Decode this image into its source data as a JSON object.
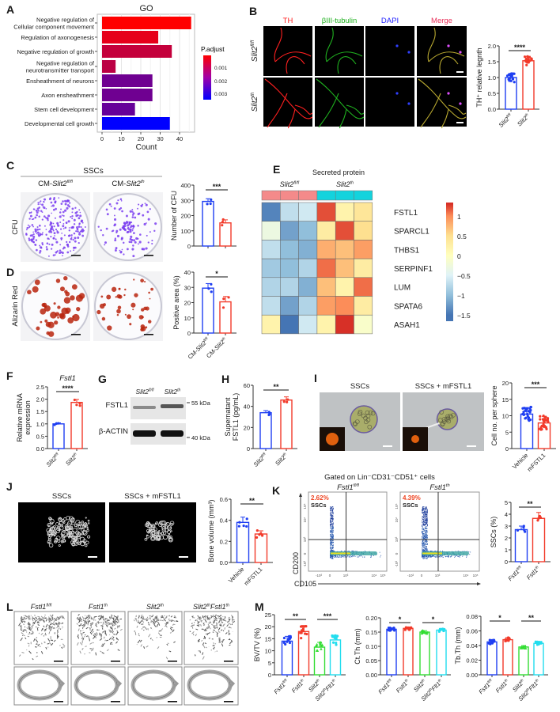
{
  "panel_labels": [
    "A",
    "B",
    "C",
    "D",
    "E",
    "F",
    "G",
    "H",
    "I",
    "J",
    "K",
    "L",
    "M"
  ],
  "genotypes": {
    "slit2_flfl": {
      "base": "Slit2",
      "sup": "fl/fl"
    },
    "slit2_th": {
      "base": "Slit2",
      "sup": "th"
    },
    "cm_slit2_flfl": {
      "pre": "CM-",
      "base": "Slit2",
      "sup": "fl/fl"
    },
    "cm_slit2_th": {
      "pre": "CM-",
      "base": "Slit2",
      "sup": "th"
    },
    "fstl1_flfl": {
      "base": "Fstl1",
      "sup": "fl/fl"
    },
    "fstl1_th": {
      "base": "Fstl1",
      "sup": "th"
    },
    "slit2th_fstl1th": {
      "base": "Slit2",
      "sup": "th",
      "base2": "Fstl1",
      "sup2": "th"
    },
    "slit2th_flt1th": {
      "base": "Slit2",
      "sup": "th",
      "base2": "Flt1",
      "sup2": "th"
    }
  },
  "B": {
    "channels": [
      "TH",
      "βIII-tubulin",
      "DAPI",
      "Merge"
    ],
    "channel_colors": [
      "#ff2020",
      "#1fb01f",
      "#2020ff",
      "#e8305a"
    ]
  },
  "C": {
    "header": "SSCs",
    "row_label": "CFU"
  },
  "D": {
    "row_label": "Alizarin Red"
  },
  "G": {
    "bands": [
      "FSTL1",
      "β-ACTIN"
    ],
    "markers": [
      "55 kDa",
      "40 kDa"
    ]
  },
  "I": {
    "titles": [
      "SSCs",
      "SSCs + mFSTL1"
    ]
  },
  "J": {
    "titles": [
      "SSCs",
      "SSCs + mFSTL1"
    ]
  },
  "K": {
    "gate_title": "Gated on Lin⁻CD31⁻CD51⁺ cells",
    "percents": [
      "2.62%",
      "4.39%"
    ],
    "gate_name": "SSCs",
    "y_axis": "CD200",
    "x_axis": "CD105",
    "y_ticks": [
      "10⁵",
      "10⁴",
      "10³",
      "0",
      "-10³"
    ],
    "x_ticks": [
      "-10³",
      "0",
      "10³",
      "10⁴",
      "10⁵"
    ]
  },
  "colors": {
    "blue": "#1f3ff2",
    "red": "#f23a2a",
    "green": "#33dd33",
    "cyan": "#22ddee"
  },
  "chart_data": [
    {
      "id": "A",
      "type": "bar",
      "orientation": "horizontal",
      "title": "GO",
      "xlabel": "Count",
      "categories": [
        [
          "Negative regulation of",
          "Cellular component movement"
        ],
        [
          "Regulation of axonogenesis"
        ],
        [
          "Negative regulation of growth"
        ],
        [
          "Negative regulation of",
          "neurotransmitter transport"
        ],
        [
          "Ensheathment of neurons"
        ],
        [
          "Axon ensheathment"
        ],
        [
          "Stem cell development"
        ],
        [
          "Developmental cell growth"
        ]
      ],
      "values": [
        46,
        29,
        36,
        7,
        26,
        26,
        17,
        35
      ],
      "padjust": [
        0.0005,
        0.0008,
        0.0012,
        0.0013,
        0.0022,
        0.0022,
        0.0023,
        0.0035
      ],
      "xticks": [
        "0",
        "10",
        "20",
        "30",
        "40"
      ],
      "xlim": [
        0,
        47
      ],
      "legend": {
        "title": "P.adjust",
        "ticks": [
          "0.001",
          "0.002",
          "0.003"
        ],
        "range": [
          0.0005,
          0.0035
        ],
        "low_color": "#ff0000",
        "high_color": "#0000ff"
      },
      "grid": true
    },
    {
      "id": "E",
      "type": "heatmap",
      "title": "Secreted protein",
      "groups": [
        {
          "genotype": "slit2_flfl",
          "color": "#f48a8a",
          "n": 3
        },
        {
          "genotype": "slit2_th",
          "color": "#13d3dd",
          "n": 3
        }
      ],
      "rows": [
        "FSTL1",
        "SPARCL1",
        "THBS1",
        "SERPINF1",
        "LUM",
        "SPATA6",
        "ASAH1"
      ],
      "values": [
        [
          -1.4,
          -0.7,
          -0.6,
          1.2,
          0.2,
          0.4
        ],
        [
          -0.3,
          -1.2,
          -1.0,
          0.3,
          1.2,
          0.5
        ],
        [
          -0.7,
          -1.0,
          -1.1,
          0.8,
          0.7,
          0.9
        ],
        [
          -0.9,
          -1.0,
          -0.8,
          1.1,
          0.7,
          0.3
        ],
        [
          -0.8,
          -0.8,
          -1.1,
          0.7,
          0.2,
          1.1
        ],
        [
          -0.7,
          -1.2,
          -0.8,
          0.9,
          1.0,
          0.3
        ],
        [
          0.2,
          -1.5,
          -0.6,
          0.2,
          1.3,
          -0.1
        ]
      ],
      "colorbar_ticks": [
        "1",
        "0.5",
        "0",
        "−0.5",
        "−1",
        "−1.5"
      ],
      "colorbar_values": [
        1,
        0.5,
        0,
        -0.5,
        -1,
        -1.5
      ]
    },
    {
      "id": "B",
      "type": "bar",
      "ylabel": "TH⁺ relative legnth",
      "ylim": [
        0,
        2
      ],
      "yticks": [
        "0.0",
        "0.5",
        "1.0",
        "1.5",
        "2.0"
      ],
      "values": [
        1.0,
        1.53
      ],
      "sd": [
        0.13,
        0.14
      ],
      "n": [
        20,
        20
      ],
      "colors": [
        "blue",
        "red"
      ],
      "xlabels": [
        "slit2_flfl",
        "slit2_th"
      ],
      "sig": [
        {
          "a": 0,
          "b": 1,
          "label": "****"
        }
      ]
    },
    {
      "id": "C",
      "type": "bar",
      "ylabel": "Number of CFU",
      "ylim": [
        0,
        400
      ],
      "yticks": [
        "0",
        "100",
        "200",
        "300",
        "400"
      ],
      "values": [
        293,
        152
      ],
      "sd": [
        18,
        20
      ],
      "n": [
        3,
        3
      ],
      "colors": [
        "blue",
        "red"
      ],
      "xlabels": [],
      "sig": [
        {
          "a": 0,
          "b": 1,
          "label": "***"
        }
      ]
    },
    {
      "id": "D",
      "type": "bar",
      "ylabel": "Positive area (%)",
      "ylim": [
        0,
        40
      ],
      "yticks": [
        "0",
        "10",
        "20",
        "30",
        "40"
      ],
      "values": [
        29.5,
        20.5
      ],
      "sd": [
        3,
        3.5
      ],
      "n": [
        3,
        3
      ],
      "colors": [
        "blue",
        "red"
      ],
      "xlabels": [
        "cm_slit2_flfl",
        "cm_slit2_th"
      ],
      "sig": [
        {
          "a": 0,
          "b": 1,
          "label": "*"
        }
      ]
    },
    {
      "id": "F",
      "type": "bar",
      "title": "Fstl1",
      "ylabel": [
        "Relative mRNA",
        "expression"
      ],
      "ylim": [
        0,
        2.5
      ],
      "yticks": [
        "0.0",
        "0.5",
        "1.0",
        "1.5",
        "2.0",
        "2.5"
      ],
      "values": [
        1.0,
        1.87
      ],
      "sd": [
        0.04,
        0.12
      ],
      "n": [
        4,
        4
      ],
      "colors": [
        "blue",
        "red"
      ],
      "xlabels": [
        "slit2_flfl",
        "slit2_th"
      ],
      "sig": [
        {
          "a": 0,
          "b": 1,
          "label": "****"
        }
      ]
    },
    {
      "id": "H",
      "type": "bar",
      "ylabel": [
        "Supernatant",
        "FSTL1 (pg/mL)"
      ],
      "ylim": [
        0,
        60
      ],
      "yticks": [
        "0",
        "20",
        "40",
        "60"
      ],
      "values": [
        34,
        46
      ],
      "sd": [
        2,
        3
      ],
      "n": [
        3,
        3
      ],
      "colors": [
        "blue",
        "red"
      ],
      "xlabels": [
        "slit2_flfl",
        "slit2_th"
      ],
      "sig": [
        {
          "a": 0,
          "b": 1,
          "label": "**"
        }
      ]
    },
    {
      "id": "I",
      "type": "bar",
      "ylabel": "Cell no. per sphere",
      "ylim": [
        0,
        20
      ],
      "yticks": [
        "0",
        "5",
        "10",
        "15",
        "20"
      ],
      "values": [
        10.5,
        7.8
      ],
      "sd": [
        2,
        2
      ],
      "n": [
        25,
        25
      ],
      "colors": [
        "blue",
        "red"
      ],
      "xlabels": [
        "Vehicle",
        "mFSTL1"
      ],
      "sig": [
        {
          "a": 0,
          "b": 1,
          "label": "***"
        }
      ]
    },
    {
      "id": "J",
      "type": "bar",
      "ylabel": "Bone volume (mm³)",
      "ylim": [
        0,
        0.6
      ],
      "yticks": [
        "0.0",
        "0.2",
        "0.4",
        "0.6"
      ],
      "values": [
        0.38,
        0.27
      ],
      "sd": [
        0.05,
        0.03
      ],
      "n": [
        5,
        5
      ],
      "colors": [
        "blue",
        "red"
      ],
      "xlabels": [
        "Vehicle",
        "mFSTL1"
      ],
      "sig": [
        {
          "a": 0,
          "b": 1,
          "label": "**"
        }
      ]
    },
    {
      "id": "K",
      "type": "bar",
      "ylabel": "SSCs (%)",
      "ylim": [
        0,
        5
      ],
      "yticks": [
        "0",
        "1",
        "2",
        "3",
        "4",
        "5"
      ],
      "values": [
        2.7,
        3.65
      ],
      "sd": [
        0.3,
        0.5
      ],
      "n": [
        5,
        5
      ],
      "colors": [
        "blue",
        "red"
      ],
      "xlabels": [
        "fstl1_flfl",
        "fstl1_th"
      ],
      "sig": [
        {
          "a": 0,
          "b": 1,
          "label": "**"
        }
      ]
    },
    {
      "id": "M1",
      "type": "bar",
      "ylabel": "BV/TV (%)",
      "ylim": [
        0,
        25
      ],
      "yticks": [
        "0",
        "5",
        "10",
        "15",
        "20",
        "25"
      ],
      "values": [
        14,
        18,
        11.5,
        14.5
      ],
      "sd": [
        2,
        2.5,
        2,
        2
      ],
      "n": [
        12,
        12,
        12,
        12
      ],
      "colors": [
        "blue",
        "red",
        "green",
        "cyan"
      ],
      "xlabels": [
        "fstl1_flfl",
        "fstl1_th",
        "slit2_th",
        "slit2th_flt1th"
      ],
      "sig": [
        {
          "a": 0,
          "b": 1,
          "label": "**"
        },
        {
          "a": 2,
          "b": 3,
          "label": "***"
        }
      ]
    },
    {
      "id": "M2",
      "type": "bar",
      "ylabel": "Ct.Th (mm)",
      "ylim": [
        0,
        0.2
      ],
      "yticks": [
        "0.00",
        "0.05",
        "0.10",
        "0.15",
        "0.20"
      ],
      "values": [
        0.16,
        0.163,
        0.15,
        0.157
      ],
      "sd": [
        0.005,
        0.005,
        0.005,
        0.005
      ],
      "n": [
        12,
        12,
        12,
        12
      ],
      "colors": [
        "blue",
        "red",
        "green",
        "cyan"
      ],
      "xlabels": [
        "fstl1_flfl",
        "fstl1_th",
        "slit2_th",
        "slit2th_flt1th"
      ],
      "sig": [
        {
          "a": 0,
          "b": 1,
          "label": "*"
        },
        {
          "a": 2,
          "b": 3,
          "label": "*"
        }
      ]
    },
    {
      "id": "M3",
      "type": "bar",
      "ylabel": "Tb.Th (mm)",
      "ylim": [
        0,
        0.08
      ],
      "yticks": [
        "0.00",
        "0.02",
        "0.04",
        "0.06",
        "0.08"
      ],
      "values": [
        0.045,
        0.048,
        0.038,
        0.043
      ],
      "sd": [
        0.003,
        0.003,
        0.002,
        0.002
      ],
      "n": [
        12,
        12,
        12,
        12
      ],
      "colors": [
        "blue",
        "red",
        "green",
        "cyan"
      ],
      "xlabels": [
        "fstl1_flfl",
        "fstl1_th",
        "slit2_th",
        "slit2th_flt1th"
      ],
      "sig": [
        {
          "a": 0,
          "b": 1,
          "label": "*"
        },
        {
          "a": 2,
          "b": 3,
          "label": "**"
        }
      ]
    }
  ]
}
